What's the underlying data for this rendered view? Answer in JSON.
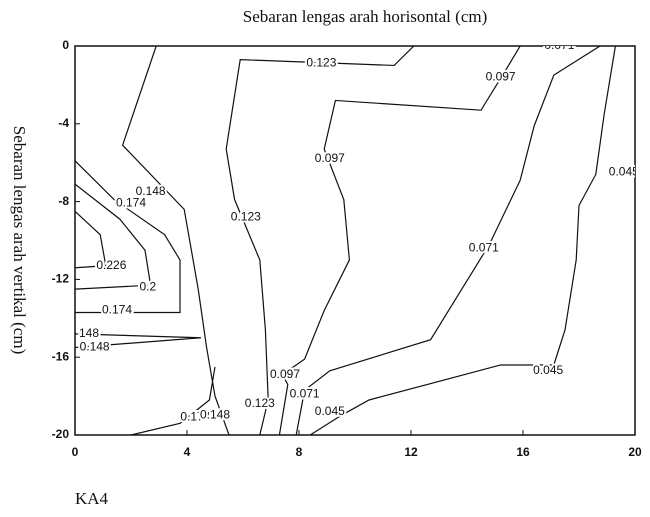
{
  "chart_data": {
    "type": "contour",
    "title": "Sebaran lengas arah horisontal (cm)",
    "y_label": "Sebaran lengas arah vertikal (cm)",
    "caption": "KA4",
    "xlim": [
      0,
      20
    ],
    "ylim": [
      -20,
      0
    ],
    "xticks": [
      0,
      4,
      8,
      12,
      16,
      20
    ],
    "yticks": [
      0,
      -4,
      -8,
      -12,
      -16,
      -20
    ],
    "color": "#111111",
    "contours": [
      {
        "level": 0.148,
        "x": [
          2.9,
          1.7,
          3.9,
          4.4,
          4.7,
          5.0,
          5.5
        ],
        "y": [
          0,
          -5.1,
          -8.4,
          -12.5,
          -15.5,
          -18,
          -20
        ]
      },
      {
        "level": 0.148,
        "x": [
          0,
          4.5,
          0
        ],
        "y": [
          -14.8,
          -15,
          -15.5
        ]
      },
      {
        "level": 0.174,
        "x": [
          0,
          1.4,
          3.2,
          3.75,
          3.75,
          0
        ],
        "y": [
          -5.9,
          -7.9,
          -9.7,
          -11,
          -13.7,
          -13.7
        ]
      },
      {
        "level": 0.174,
        "x": [
          2,
          3.75,
          4.8,
          5.0
        ],
        "y": [
          -20,
          -19.4,
          -18.2,
          -16.5
        ]
      },
      {
        "level": 0.2,
        "x": [
          0,
          1.6,
          2.5,
          2.7,
          0
        ],
        "y": [
          -7.1,
          -8.9,
          -10.5,
          -12.3,
          -12.5
        ]
      },
      {
        "level": 0.226,
        "x": [
          0,
          0.9,
          1.1,
          0
        ],
        "y": [
          -8.5,
          -9.7,
          -11.3,
          -11.4
        ]
      },
      {
        "level": 0.123,
        "x": [
          12.1,
          11.4,
          5.9,
          5.4,
          5.7,
          6.6,
          6.8,
          6.9,
          6.6
        ],
        "y": [
          0,
          -1.0,
          -0.7,
          -5.3,
          -7.9,
          -11,
          -14.6,
          -18.2,
          -20
        ]
      },
      {
        "level": 0.097,
        "x": [
          15.9,
          15.4,
          14.5,
          9.3,
          8.9,
          9.6,
          9.8,
          8.9,
          8.2,
          7.4,
          7.6,
          7.3
        ],
        "y": [
          0,
          -1.2,
          -3.3,
          -2.8,
          -5.3,
          -7.9,
          -11,
          -13.6,
          -16.1,
          -16.9,
          -17.4,
          -20
        ]
      },
      {
        "level": 0.071,
        "x": [
          18.75,
          17.1,
          16.4,
          15.9,
          14.8,
          13.6,
          12.7,
          9.1,
          8.2,
          7.9
        ],
        "y": [
          0,
          -1.5,
          -4.1,
          -6.9,
          -10.2,
          -13,
          -15.1,
          -16.7,
          -17.7,
          -20
        ]
      },
      {
        "level": 0.045,
        "x": [
          19.3,
          18.9,
          18.6,
          18,
          17.9,
          17.5,
          17.1,
          15.2,
          10.5,
          9.5,
          8.4
        ],
        "y": [
          0,
          -3.5,
          -6.6,
          -8.2,
          -11,
          -14.6,
          -16.4,
          -16.4,
          -18.2,
          -19,
          -20
        ]
      }
    ],
    "labels": [
      {
        "value": 0.148,
        "x": 2.7,
        "y": -7.5
      },
      {
        "value": 0.174,
        "x": 2,
        "y": -8.1
      },
      {
        "value": 0.226,
        "x": 1.3,
        "y": -11.3
      },
      {
        "value": 0.2,
        "x": 2.6,
        "y": -12.4
      },
      {
        "value": 0.174,
        "x": 1.5,
        "y": -13.6
      },
      {
        "value": 0.148,
        "label": "148",
        "x": 0.5,
        "y": -14.8
      },
      {
        "value": 0.148,
        "x": 0.7,
        "y": -15.5
      },
      {
        "value": 0.123,
        "x": 6.1,
        "y": -8.8
      },
      {
        "value": 0.123,
        "x": 8.8,
        "y": -0.9
      },
      {
        "value": 0.097,
        "x": 15.2,
        "y": -1.6
      },
      {
        "value": 0.071,
        "x": 17.3,
        "y": 0
      },
      {
        "value": 0.097,
        "x": 9.1,
        "y": -5.8
      },
      {
        "value": 0.045,
        "x": 19.6,
        "y": -6.5
      },
      {
        "value": 0.071,
        "x": 14.6,
        "y": -10.4
      },
      {
        "value": 0.097,
        "x": 7.5,
        "y": -16.9
      },
      {
        "value": 0.123,
        "x": 6.6,
        "y": -18.4
      },
      {
        "value": 0.071,
        "x": 8.2,
        "y": -17.9
      },
      {
        "value": 0.045,
        "x": 16.9,
        "y": -16.7
      },
      {
        "value": 0.174,
        "x": 4.3,
        "y": -19.1
      },
      {
        "value": 0.148,
        "x": 5,
        "y": -19
      },
      {
        "value": 0.045,
        "x": 9.1,
        "y": -18.8
      }
    ]
  }
}
